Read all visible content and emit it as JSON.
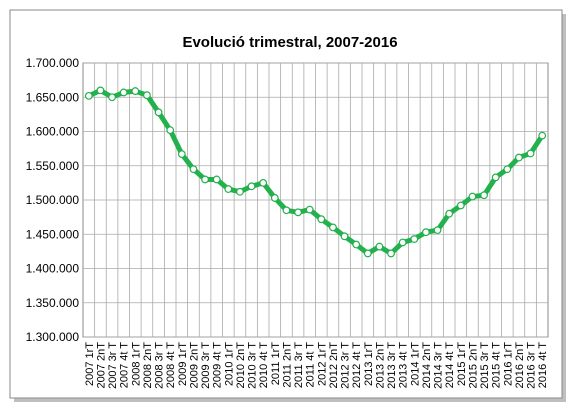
{
  "chart_data": {
    "type": "line",
    "title": "Evolució trimestral, 2007-2016",
    "categories": [
      "2007 1rT",
      "2007 2nT",
      "2007 3r T",
      "2007 4t T",
      "2008 1rT",
      "2008 2nT",
      "2008 3r T",
      "2008 4t T",
      "2009 1rT",
      "2009 2nT",
      "2009 3r T",
      "2009 4t T",
      "2010 1rT",
      "2010 2nT",
      "2010 3r T",
      "2010 4t T",
      "2011 1rT",
      "2011 2nT",
      "2011 3r T",
      "2011 4t T",
      "2012 1rT",
      "2012 2nT",
      "2012 3r T",
      "2012 4t T",
      "2013 1rT",
      "2013 2nT",
      "2013 3r T",
      "2013 4t T",
      "2014 1rT",
      "2014 2nT",
      "2014 3r T",
      "2014 4t T",
      "2015 1rT",
      "2015 2nT",
      "2015 3r T",
      "2015 4t T",
      "2016 1rT",
      "2016 2nT",
      "2016 3r T",
      "2016 4t T"
    ],
    "series": [
      {
        "color": "#22b14c",
        "values": [
          1652000,
          1660000,
          1650000,
          1657000,
          1659000,
          1653000,
          1628000,
          1602000,
          1567000,
          1545000,
          1530000,
          1530000,
          1516000,
          1512000,
          1520000,
          1525000,
          1503000,
          1485000,
          1482000,
          1486000,
          1472000,
          1460000,
          1447000,
          1435000,
          1422000,
          1432000,
          1422000,
          1438000,
          1443000,
          1453000,
          1456000,
          1480000,
          1492000,
          1505000,
          1507000,
          1533000,
          1545000,
          1562000,
          1568000,
          1594000
        ]
      }
    ],
    "ylim": [
      1300000,
      1700000
    ],
    "yticks": [
      {
        "value": 1300000,
        "label": "1.300.000"
      },
      {
        "value": 1350000,
        "label": "1.350.000"
      },
      {
        "value": 1400000,
        "label": "1.400.000"
      },
      {
        "value": 1450000,
        "label": "1.450.000"
      },
      {
        "value": 1500000,
        "label": "1.500.000"
      },
      {
        "value": 1550000,
        "label": "1.550.000"
      },
      {
        "value": 1600000,
        "label": "1.600.000"
      },
      {
        "value": 1650000,
        "label": "1.650.000"
      },
      {
        "value": 1700000,
        "label": "1.700.000"
      }
    ],
    "grid": true
  }
}
